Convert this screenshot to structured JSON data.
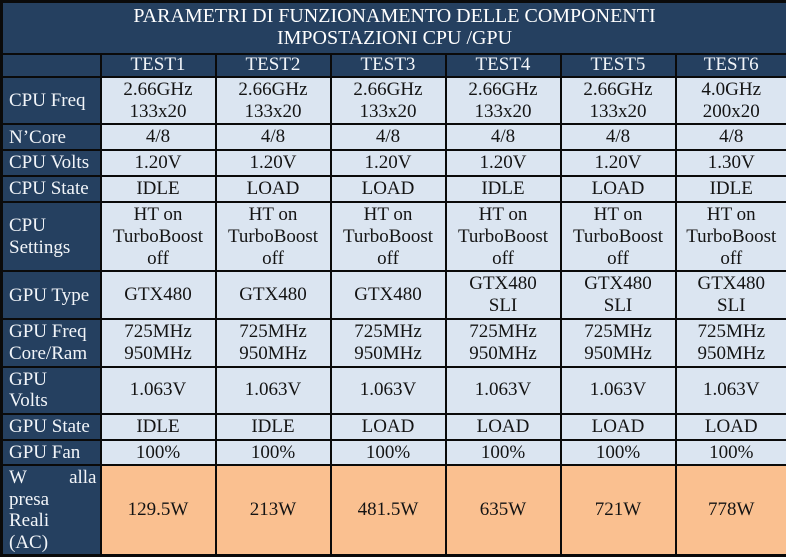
{
  "table": {
    "title_line1": "PARAMETRI DI FUNZIONAMENTO DELLE COMPONENTI",
    "title_line2": "IMPOSTAZIONI CPU /GPU",
    "corner_label": "",
    "columns": [
      "TEST1",
      "TEST2",
      "TEST3",
      "TEST4",
      "TEST5",
      "TEST6"
    ],
    "rows": [
      {
        "label": "CPU Freq",
        "values": [
          "2.66GHz\n133x20",
          "2.66GHz\n133x20",
          "2.66GHz\n133x20",
          "2.66GHz\n133x20",
          "2.66GHz\n133x20",
          "4.0GHz\n200x20"
        ],
        "highlight": false
      },
      {
        "label": "N’Core",
        "values": [
          "4/8",
          "4/8",
          "4/8",
          "4/8",
          "4/8",
          "4/8"
        ],
        "highlight": false
      },
      {
        "label": "CPU Volts",
        "values": [
          "1.20V",
          "1.20V",
          "1.20V",
          "1.20V",
          "1.20V",
          "1.30V"
        ],
        "highlight": false
      },
      {
        "label": "CPU State",
        "values": [
          "IDLE",
          "LOAD",
          "LOAD",
          "IDLE",
          "LOAD",
          "IDLE"
        ],
        "highlight": false
      },
      {
        "label": "CPU\nSettings",
        "values": [
          "HT on\nTurboBoost\noff",
          "HT on\nTurboBoost\noff",
          "HT on\nTurboBoost\noff",
          "HT on\nTurboBoost\noff",
          "HT on\nTurboBoost\noff",
          "HT on\nTurboBoost\noff"
        ],
        "highlight": false
      },
      {
        "label": "GPU Type",
        "values": [
          "GTX480",
          "GTX480",
          "GTX480",
          "GTX480\nSLI",
          "GTX480\nSLI",
          "GTX480\nSLI"
        ],
        "highlight": false
      },
      {
        "label": "GPU Freq\nCore/Ram",
        "values": [
          "725MHz\n950MHz",
          "725MHz\n950MHz",
          "725MHz\n950MHz",
          "725MHz\n950MHz",
          "725MHz\n950MHz",
          "725MHz\n950MHz"
        ],
        "highlight": false
      },
      {
        "label": "GPU\nVolts",
        "values": [
          "1.063V",
          "1.063V",
          "1.063V",
          "1.063V",
          "1.063V",
          "1.063V"
        ],
        "highlight": false
      },
      {
        "label": "GPU State",
        "values": [
          "IDLE",
          "IDLE",
          "LOAD",
          "LOAD",
          "LOAD",
          "LOAD"
        ],
        "highlight": false
      },
      {
        "label": "GPU Fan",
        "values": [
          "100%",
          "100%",
          "100%",
          "100%",
          "100%",
          "100%"
        ],
        "highlight": false
      },
      {
        "label": "W alla\npresa\nReali\n(AC)",
        "justify_label": true,
        "values": [
          "129.5W",
          "213W",
          "481.5W",
          "635W",
          "721W",
          "778W"
        ],
        "highlight": true
      }
    ]
  },
  "colors": {
    "header_bg": "#254060",
    "cell_bg": "#DBE5F1",
    "highlight_bg": "#FAC090",
    "border": "#0a0a0a",
    "header_text": "#f2f5f9",
    "cell_text": "#141414"
  }
}
